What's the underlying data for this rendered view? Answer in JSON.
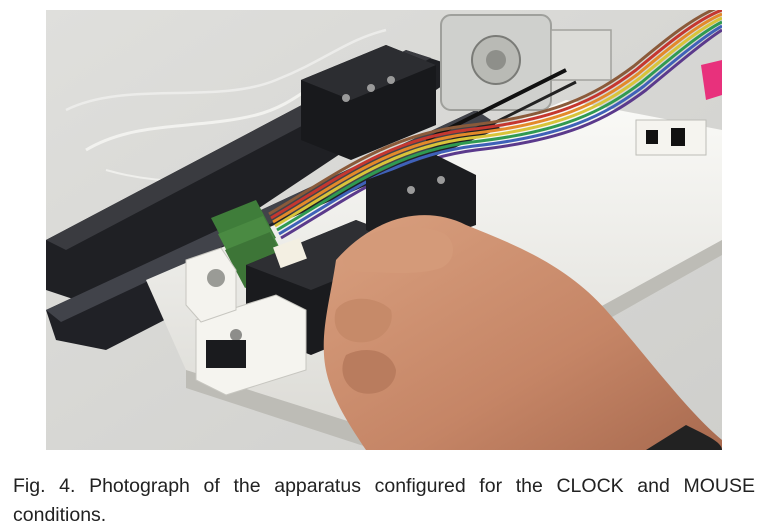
{
  "figure": {
    "caption": "Fig. 4. Photograph of the apparatus configured for the CLOCK and MOUSE conditions.",
    "photo_colors": {
      "table": "#d8d8d6",
      "rail": "#232428",
      "white_plastic": "#f3f2ee",
      "skin": "#c98d6c",
      "ribbon": [
        "#5b3a8c",
        "#3f61b8",
        "#2f9a52",
        "#d8c43a",
        "#e38a2a",
        "#c5372f",
        "#8a5a3a"
      ]
    }
  }
}
